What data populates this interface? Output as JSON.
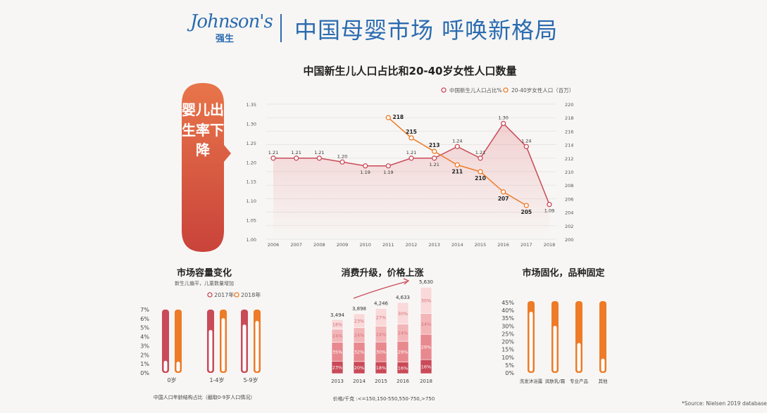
{
  "header": {
    "brand_script": "Johnson's",
    "brand_cn": "强生",
    "title": "中国母婴市场 呼唤新格局"
  },
  "side_tag": {
    "text": "婴儿出生率下降"
  },
  "source": "*Source: Nielsen 2019 database",
  "colors": {
    "red": "#c94a58",
    "orange": "#ee7b27",
    "brand_blue": "#2b6bb0",
    "tag_red": "#db5a3f"
  },
  "chart_data": [
    {
      "type": "line",
      "title": "中国新生儿人口占比和20-40岁女性人口数量",
      "x": [
        "2006",
        "2007",
        "2008",
        "2009",
        "2010",
        "2011",
        "2012",
        "2013",
        "2014",
        "2015",
        "2016",
        "2017",
        "2018"
      ],
      "series": [
        {
          "name": "中国新生儿人口占比%",
          "axis": "left",
          "color": "#c94a58",
          "values": [
            1.21,
            1.21,
            1.21,
            1.2,
            1.19,
            1.19,
            1.21,
            1.21,
            1.24,
            1.21,
            1.3,
            1.24,
            1.09
          ]
        },
        {
          "name": "20-40岁女性人口（百万）",
          "axis": "right",
          "color": "#ee7b27",
          "x": [
            "2011",
            "2012",
            "2013",
            "2014",
            "2015",
            "2016",
            "2017"
          ],
          "values": [
            218,
            215,
            213,
            211,
            210,
            207,
            205
          ]
        }
      ],
      "y_left_ticks": [
        "1.35",
        "1.30",
        "1.25",
        "1.20",
        "1.15",
        "1.10",
        "1.05",
        "1.00"
      ],
      "y_right_ticks": [
        "220",
        "218",
        "216",
        "214",
        "212",
        "210",
        "208",
        "206",
        "204",
        "202",
        "200"
      ],
      "ylim_left": [
        1.0,
        1.35
      ],
      "ylim_right": [
        200,
        220
      ],
      "grid": true,
      "legend": "top-right"
    },
    {
      "type": "bar",
      "title": "市场容量变化",
      "subtitle": "新生儿偏平，儿童数量增加",
      "legend": [
        "2017年",
        "2018年"
      ],
      "categories": [
        "0岁",
        "1-4岁",
        "5-9岁"
      ],
      "series": [
        {
          "name": "2017年",
          "color": "#c94a58",
          "values": [
            1.5,
            4.9,
            5.5
          ]
        },
        {
          "name": "2018年",
          "color": "#ee7b27",
          "values": [
            1.4,
            6.2,
            5.9
          ]
        }
      ],
      "y_ticks": [
        "7%",
        "6%",
        "5%",
        "4%",
        "3%",
        "2%",
        "1%",
        "0%"
      ],
      "ylim": [
        0,
        7
      ],
      "footnote": "中国人口年龄结构占比（截取0-9岁人口情况）"
    },
    {
      "type": "bar",
      "stacked": true,
      "title": "消费升级，价格上涨",
      "categories": [
        "2013",
        "2014",
        "2015",
        "2016",
        "2018"
      ],
      "totals": [
        "3,494",
        "3,898",
        "4,246",
        "4,633",
        "5,630"
      ],
      "total_values": [
        3494,
        3898,
        4246,
        4633,
        5630
      ],
      "segments": [
        {
          "label": "<=150",
          "values": [
            "23%",
            "20%",
            "18%",
            "16%",
            "16%"
          ],
          "color": "#c94a58"
        },
        {
          "label": "150-550",
          "values": [
            "35%",
            "32%",
            "30%",
            "29%",
            "29%"
          ],
          "color": "#e8898f"
        },
        {
          "label": "550-750",
          "values": [
            "24%",
            "24%",
            "24%",
            "24%",
            "24%"
          ],
          "color": "#f3b6b8"
        },
        {
          "label": ">750",
          "values": [
            "18%",
            "23%",
            "27%",
            "30%",
            "30%"
          ],
          "color": "#f9d9d9"
        }
      ],
      "footnote": "价格/千克 :<=150,150-550,550-750,>750"
    },
    {
      "type": "bar",
      "title": "市场固化，品种固定",
      "categories": [
        "洗发沐浴露",
        "润肤乳/霜",
        "专业产品",
        "其他"
      ],
      "values": [
        40,
        31,
        20,
        10
      ],
      "capacity": 45,
      "color": "#ee7b27",
      "y_ticks": [
        "45%",
        "40%",
        "35%",
        "30%",
        "25%",
        "20%",
        "15%",
        "10%",
        "5%",
        "0%"
      ],
      "ylim": [
        0,
        45
      ]
    }
  ]
}
